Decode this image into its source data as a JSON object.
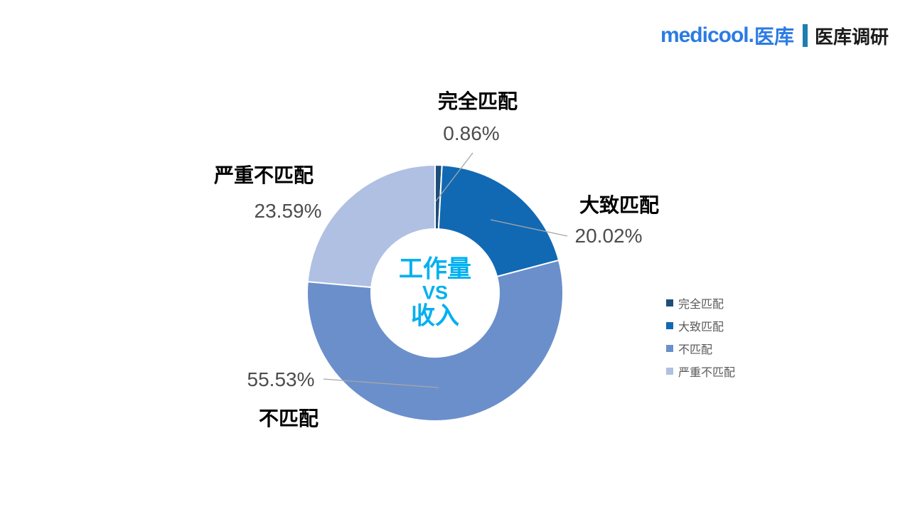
{
  "header": {
    "logo_en": "medicool.",
    "logo_cn": "医库",
    "sub_brand": "医库调研"
  },
  "chart_data": {
    "type": "pie",
    "donut": true,
    "title": "工作量 VS 收入",
    "center_label_lines": [
      "工作量",
      "VS",
      "收入"
    ],
    "categories": [
      "完全匹配",
      "大致匹配",
      "不匹配",
      "严重不匹配"
    ],
    "values": [
      0.86,
      20.02,
      55.53,
      23.59
    ],
    "value_labels": [
      "0.86%",
      "20.02%",
      "55.53%",
      "23.59%"
    ],
    "colors": [
      "#1F4E79",
      "#1169B4",
      "#6B8FCB",
      "#B0C0E3"
    ],
    "start_angle_deg": 0,
    "direction": "clockwise",
    "legend_position": "right",
    "leader_line_color": "#A6A6A6",
    "center_text_color": "#00B0F0"
  },
  "slices": [
    {
      "label": "完全匹配",
      "pct": "0.86%"
    },
    {
      "label": "大致匹配",
      "pct": "20.02%"
    },
    {
      "label": "不匹配",
      "pct": "55.53%"
    },
    {
      "label": "严重不匹配",
      "pct": "23.59%"
    }
  ]
}
